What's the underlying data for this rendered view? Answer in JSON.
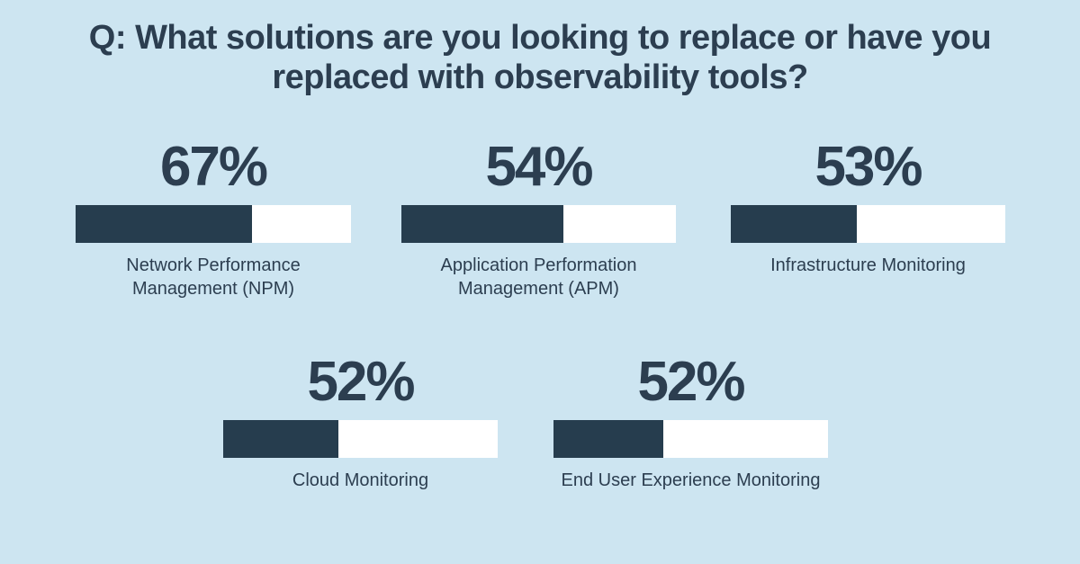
{
  "title_lines": [
    "Q: What solutions are you looking to replace or have you",
    "replaced with observability tools?"
  ],
  "chart_data": {
    "type": "bar",
    "orientation": "horizontal",
    "title": "Q: What solutions are you looking to replace or have you replaced with observability tools?",
    "unit": "percent",
    "axes": "none",
    "legend": "none",
    "grid": false,
    "items": [
      {
        "label": "Network Performance Management (NPM)",
        "label_lines": [
          "Network Performance",
          "Management (NPM)"
        ],
        "value": 67,
        "value_label": "67%",
        "display_fill_percent": 64
      },
      {
        "label": "Application Performation Management (APM)",
        "label_lines": [
          "Application Performation",
          "Management (APM)"
        ],
        "value": 54,
        "value_label": "54%",
        "display_fill_percent": 59
      },
      {
        "label": "Infrastructure Monitoring",
        "label_lines": [
          "Infrastructure Monitoring"
        ],
        "value": 53,
        "value_label": "53%",
        "display_fill_percent": 46
      },
      {
        "label": "Cloud Monitoring",
        "label_lines": [
          "Cloud Monitoring"
        ],
        "value": 52,
        "value_label": "52%",
        "display_fill_percent": 42
      },
      {
        "label": "End User Experience Monitoring",
        "label_lines": [
          "End User Experience Monitoring"
        ],
        "value": 52,
        "value_label": "52%",
        "display_fill_percent": 40
      }
    ],
    "colors": {
      "background": "#cde5f1",
      "bar_fill": "#263d4e",
      "bar_track": "#ffffff",
      "text": "#2c3e50"
    }
  }
}
